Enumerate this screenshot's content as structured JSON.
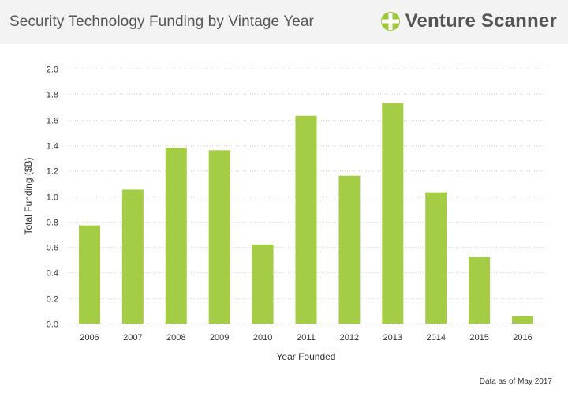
{
  "header": {
    "title": "Security Technology Funding by Vintage Year",
    "brand": "Venture Scanner"
  },
  "footnote": "Data as of May 2017",
  "colors": {
    "bar": "#a4cc44",
    "grid": "#d8d8d8",
    "brand_icon": "#9ec73d"
  },
  "icons": {
    "brand": "venture-scanner-logo-icon"
  },
  "chart_data": {
    "type": "bar",
    "title": "Security Technology Funding by Vintage Year",
    "xlabel": "Year Founded",
    "ylabel": "Total Funding ($B)",
    "categories": [
      "2006",
      "2007",
      "2008",
      "2009",
      "2010",
      "2011",
      "2012",
      "2013",
      "2014",
      "2015",
      "2016"
    ],
    "values": [
      0.77,
      1.05,
      1.38,
      1.36,
      0.62,
      1.63,
      1.16,
      1.73,
      1.03,
      0.52,
      0.06
    ],
    "ylim": [
      0,
      2.0
    ],
    "yticks": [
      "0.0",
      "0.2",
      "0.4",
      "0.6",
      "0.8",
      "1.0",
      "1.2",
      "1.4",
      "1.6",
      "1.8",
      "2.0"
    ],
    "grid": true,
    "legend": "none"
  }
}
